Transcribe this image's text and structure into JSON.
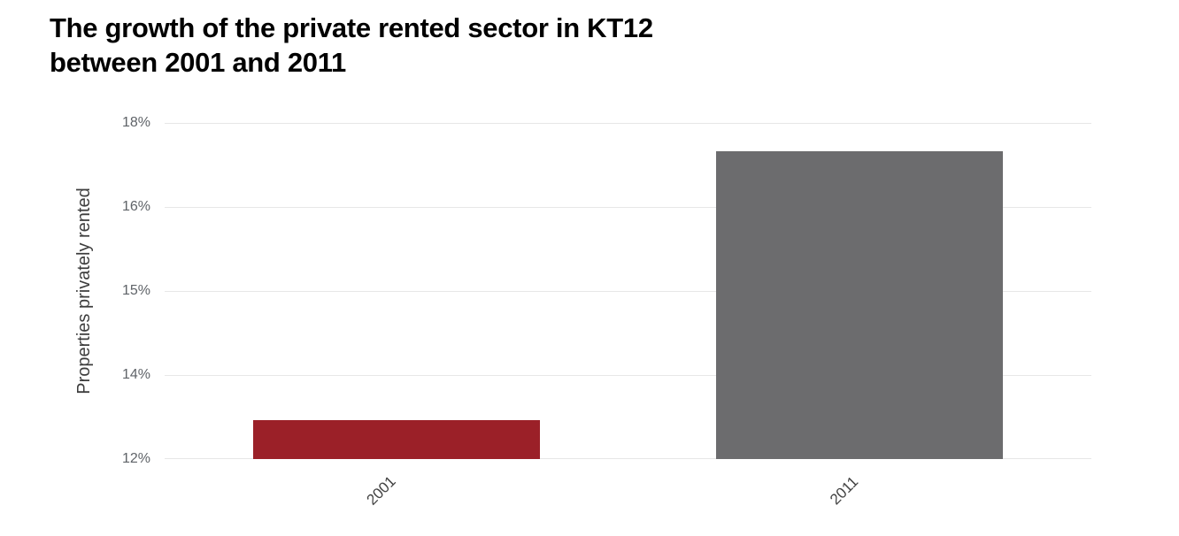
{
  "title": {
    "line1": "The growth of the private rented sector in KT12",
    "line2": "between 2001 and 2011"
  },
  "chart_data": {
    "type": "bar",
    "title": "The growth of the private rented sector in KT12 between 2001 and 2011",
    "categories": [
      "2001",
      "2011"
    ],
    "values": [
      12.7,
      17.5
    ],
    "value_unit": "%",
    "xlabel": "",
    "ylabel": "Properties privately rented",
    "ylim": [
      12,
      18
    ],
    "ytick_labels_top_to_bottom": [
      "18%",
      "16%",
      "15%",
      "14%",
      "12%"
    ],
    "grid": true,
    "legend_position": "none",
    "x_label_rotation_deg": -45,
    "series_colors": [
      "#9b2028",
      "#6c6c6e"
    ]
  },
  "colors": {
    "background": "#ffffff",
    "bar_2001": "#9b2028",
    "bar_2011": "#6c6c6e",
    "gridline": "#e7e7e7",
    "title_text": "#000000",
    "ytick_text": "#5f6368",
    "xtick_text": "#424242",
    "axis_title_text": "#3d3d3d"
  }
}
